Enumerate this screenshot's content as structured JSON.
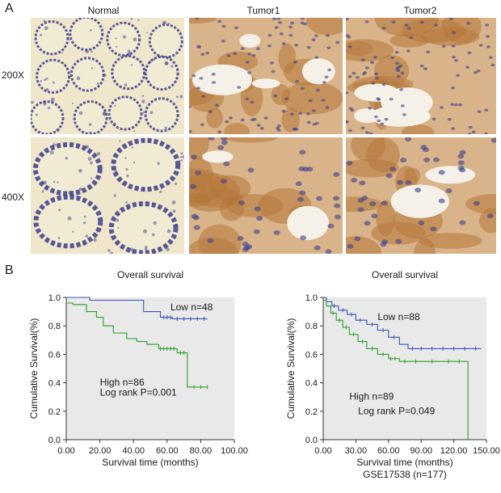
{
  "panel_labels": {
    "a": "A",
    "b": "B"
  },
  "micrographs": {
    "columns": [
      "Normal",
      "Tumor1",
      "Tumor2"
    ],
    "rows": [
      "200X",
      "400X"
    ]
  },
  "colors": {
    "low_series": "#3a55b4",
    "high_series": "#2ca02c",
    "plot_bg": "#e9e9e9",
    "normal_stain": "#e4dcc2",
    "tumor_stain": "#b4763a",
    "nuclei": "#3d3f8a"
  },
  "chart_data": [
    {
      "type": "line",
      "subtype": "kaplan-meier",
      "title": "Overall survival",
      "xlabel": "Survival time (months)",
      "ylabel": "Cumulative Survival(%)",
      "footer": "",
      "xlim": [
        0,
        100
      ],
      "ylim": [
        0,
        1
      ],
      "xticks": [
        "0.00",
        "20.00",
        "40.00",
        "60.00",
        "80.00",
        "100.00"
      ],
      "yticks": [
        "0.0",
        "0.2",
        "0.4",
        "0.6",
        "0.8",
        "1.0"
      ],
      "annotations": [
        "Low n=48",
        "High n=86",
        "Log rank P=0.001"
      ],
      "series": [
        {
          "name": "Low n=48",
          "color": "#3a55b4",
          "x": [
            0,
            14,
            14,
            46,
            46,
            56,
            56,
            63,
            63,
            84
          ],
          "y": [
            1.0,
            1.0,
            0.98,
            0.98,
            0.9,
            0.9,
            0.86,
            0.86,
            0.85,
            0.85
          ],
          "censored_x": [
            58,
            60,
            62,
            66,
            70,
            74,
            78,
            82
          ]
        },
        {
          "name": "High n=86",
          "color": "#2ca02c",
          "x": [
            0,
            4,
            4,
            12,
            12,
            18,
            18,
            22,
            22,
            28,
            28,
            36,
            36,
            42,
            42,
            48,
            48,
            55,
            55,
            66,
            66,
            72,
            72,
            84
          ],
          "y": [
            0.96,
            0.96,
            0.95,
            0.95,
            0.9,
            0.9,
            0.86,
            0.86,
            0.8,
            0.8,
            0.75,
            0.75,
            0.71,
            0.71,
            0.69,
            0.69,
            0.67,
            0.67,
            0.64,
            0.64,
            0.61,
            0.61,
            0.37,
            0.37
          ],
          "censored_x": [
            56,
            58,
            60,
            62,
            64,
            68,
            70,
            76,
            80,
            84
          ]
        }
      ]
    },
    {
      "type": "line",
      "subtype": "kaplan-meier",
      "title": "Overall survival",
      "xlabel": "Survival time (months)",
      "ylabel": "Cumulative Survival(%)",
      "footer": "GSE17538 (n=177)",
      "xlim": [
        0,
        150
      ],
      "ylim": [
        0,
        1
      ],
      "xticks": [
        "0.00",
        "30.00",
        "60.00",
        "90.00",
        "120.00",
        "150.00"
      ],
      "yticks": [
        "0.0",
        "0.2",
        "0.4",
        "0.6",
        "0.8",
        "1.0"
      ],
      "annotations": [
        "Low n=88",
        "High n=89",
        "Log rank P=0.049"
      ],
      "series": [
        {
          "name": "Low n=88",
          "color": "#3a55b4",
          "x": [
            0,
            3,
            3,
            8,
            8,
            14,
            14,
            22,
            22,
            30,
            30,
            40,
            40,
            50,
            50,
            60,
            60,
            70,
            70,
            78,
            78,
            145
          ],
          "y": [
            1.0,
            1.0,
            0.97,
            0.97,
            0.94,
            0.94,
            0.91,
            0.91,
            0.88,
            0.88,
            0.84,
            0.84,
            0.81,
            0.81,
            0.77,
            0.77,
            0.72,
            0.72,
            0.67,
            0.67,
            0.64,
            0.64
          ],
          "censored_x": [
            10,
            18,
            26,
            34,
            45,
            55,
            65,
            82,
            90,
            100,
            110,
            120,
            130,
            140
          ]
        },
        {
          "name": "High n=89",
          "color": "#2ca02c",
          "x": [
            0,
            3,
            3,
            7,
            7,
            12,
            12,
            18,
            18,
            24,
            24,
            32,
            32,
            40,
            40,
            50,
            50,
            60,
            60,
            70,
            70,
            133,
            133
          ],
          "y": [
            0.98,
            0.98,
            0.94,
            0.94,
            0.89,
            0.89,
            0.84,
            0.84,
            0.79,
            0.79,
            0.74,
            0.74,
            0.69,
            0.69,
            0.64,
            0.64,
            0.6,
            0.6,
            0.57,
            0.57,
            0.55,
            0.55,
            0.0
          ],
          "censored_x": [
            9,
            15,
            21,
            28,
            36,
            45,
            55,
            62,
            66,
            75,
            85,
            100,
            115,
            125
          ]
        }
      ]
    }
  ]
}
